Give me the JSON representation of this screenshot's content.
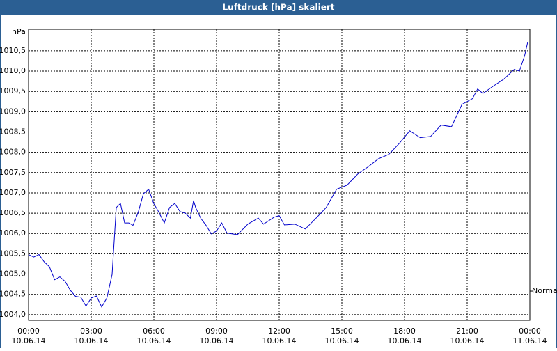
{
  "chart_data": {
    "type": "line",
    "title": "Luftdruck [hPa] skaliert",
    "y_unit": "hPa",
    "x": [
      0,
      0.25,
      0.5,
      0.75,
      1,
      1.25,
      1.5,
      1.75,
      2,
      2.25,
      2.5,
      2.75,
      3,
      3.25,
      3.5,
      3.75,
      4,
      4.2,
      4.4,
      4.6,
      4.8,
      5,
      5.25,
      5.5,
      5.75,
      6,
      6.2,
      6.5,
      6.75,
      7,
      7.25,
      7.5,
      7.75,
      7.9,
      8,
      8.25,
      8.5,
      8.75,
      9,
      9.25,
      9.5,
      10,
      10.5,
      11,
      11.25,
      11.75,
      12,
      12.25,
      12.75,
      13.25,
      13.75,
      14.25,
      14.75,
      15.25,
      15.75,
      16.25,
      16.75,
      17.25,
      17.75,
      18.25,
      18.75,
      19.25,
      19.75,
      20.25,
      20.75,
      21.25,
      21.5,
      21.75,
      22.25,
      22.75,
      23.25,
      23.5,
      23.75,
      23.9
    ],
    "series": [
      {
        "name": "Luftdruck",
        "color": "#0000cc",
        "values": [
          1005.48,
          1005.42,
          1005.48,
          1005.3,
          1005.18,
          1004.86,
          1004.93,
          1004.82,
          1004.6,
          1004.45,
          1004.43,
          1004.21,
          1004.41,
          1004.46,
          1004.19,
          1004.41,
          1004.99,
          1006.64,
          1006.74,
          1006.26,
          1006.26,
          1006.2,
          1006.52,
          1006.98,
          1007.09,
          1006.73,
          1006.56,
          1006.26,
          1006.64,
          1006.74,
          1006.54,
          1006.5,
          1006.38,
          1006.81,
          1006.64,
          1006.37,
          1006.2,
          1005.99,
          1006.06,
          1006.26,
          1006.01,
          1005.97,
          1006.23,
          1006.38,
          1006.23,
          1006.4,
          1006.44,
          1006.21,
          1006.23,
          1006.11,
          1006.37,
          1006.64,
          1007.09,
          1007.19,
          1007.46,
          1007.64,
          1007.84,
          1007.95,
          1008.22,
          1008.53,
          1008.36,
          1008.39,
          1008.67,
          1008.63,
          1009.18,
          1009.32,
          1009.56,
          1009.45,
          1009.63,
          1009.8,
          1010.04,
          1010,
          1010.38,
          1010.72
        ]
      }
    ],
    "xlim": [
      0,
      24
    ],
    "xticks": [
      {
        "value": 0,
        "label": "00:00"
      },
      {
        "value": 3,
        "label": "03:00"
      },
      {
        "value": 6,
        "label": "06:00"
      },
      {
        "value": 9,
        "label": "09:00"
      },
      {
        "value": 12,
        "label": "12:00"
      },
      {
        "value": 15,
        "label": "15:00"
      },
      {
        "value": 18,
        "label": "18:00"
      },
      {
        "value": 21,
        "label": "21:00"
      },
      {
        "value": 24,
        "label": "00:00"
      }
    ],
    "xtick_dates": [
      "10.06.14",
      "10.06.14",
      "10.06.14",
      "10.06.14",
      "10.06.14",
      "10.06.14",
      "10.06.14",
      "10.06.14",
      "11.06.14"
    ],
    "ylim": [
      1003.86,
      1011.03
    ],
    "yticks": [
      {
        "value": 1004,
        "label": "1004,0"
      },
      {
        "value": 1004.5,
        "label": "1004,5"
      },
      {
        "value": 1005,
        "label": "1005,0"
      },
      {
        "value": 1005.5,
        "label": "1005,5"
      },
      {
        "value": 1006,
        "label": "1006,0"
      },
      {
        "value": 1006.5,
        "label": "1006,5"
      },
      {
        "value": 1007,
        "label": "1007,0"
      },
      {
        "value": 1007.5,
        "label": "1007,5"
      },
      {
        "value": 1008,
        "label": "1008,0"
      },
      {
        "value": 1008.5,
        "label": "1008,5"
      },
      {
        "value": 1009,
        "label": "1009,0"
      },
      {
        "value": 1009.5,
        "label": "1009,5"
      },
      {
        "value": 1010,
        "label": "1010,0"
      },
      {
        "value": 1010.5,
        "label": "1010,5"
      }
    ],
    "reference": {
      "value": 1004.58,
      "label": "Normal"
    },
    "grid": true
  }
}
